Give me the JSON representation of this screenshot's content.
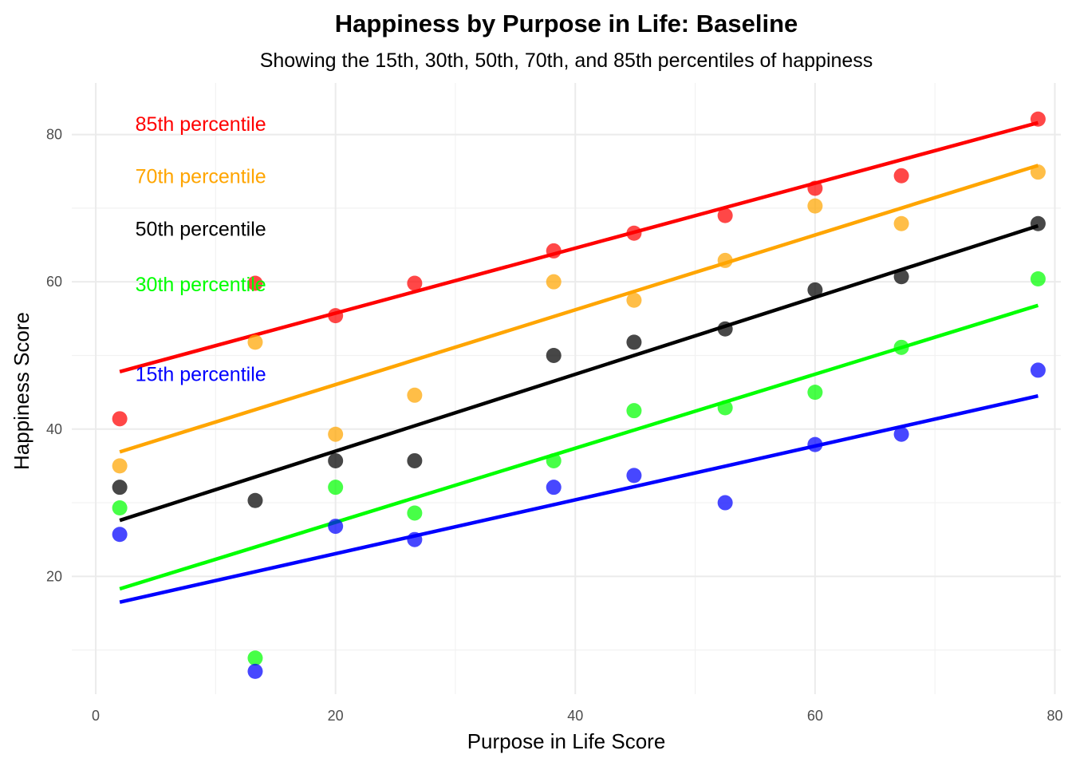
{
  "chart_data": {
    "type": "scatter",
    "title": "Happiness by Purpose in Life: Baseline",
    "subtitle": "Showing the 15th, 30th, 50th, 70th, and 85th percentiles of happiness",
    "xlabel": "Purpose in Life Score",
    "ylabel": "Happiness Score",
    "xlim": [
      -2,
      80.5
    ],
    "ylim": [
      4,
      87
    ],
    "x_ticks": [
      0,
      20,
      40,
      60,
      80
    ],
    "y_ticks": [
      20,
      40,
      60,
      80
    ],
    "x_tick_labels": [
      "0",
      "20",
      "40",
      "60",
      "80"
    ],
    "y_tick_labels": [
      "20",
      "40",
      "60",
      "80"
    ],
    "grid": true,
    "x": [
      2,
      13.3,
      20,
      26.6,
      38.2,
      44.9,
      52.5,
      60,
      67.2,
      78.6
    ],
    "series": [
      {
        "name": "85th percentile",
        "color": "#ff0000",
        "values": [
          41.4,
          59.8,
          55.4,
          59.8,
          64.2,
          66.6,
          69.0,
          72.7,
          74.4,
          82.1
        ],
        "line": {
          "x": [
            2,
            78.6
          ],
          "y": [
            47.8,
            81.6
          ]
        },
        "label_position": {
          "x": 3.3,
          "y": 81.5
        }
      },
      {
        "name": "70th percentile",
        "color": "#ffa500",
        "values": [
          35.0,
          51.8,
          39.3,
          44.6,
          60.0,
          57.5,
          62.9,
          70.3,
          67.9,
          74.9
        ],
        "line": {
          "x": [
            2,
            78.6
          ],
          "y": [
            36.9,
            75.8
          ]
        },
        "label_position": {
          "x": 3.3,
          "y": 74.4
        }
      },
      {
        "name": "50th percentile",
        "color": "#000000",
        "values": [
          32.1,
          30.3,
          35.7,
          35.7,
          50.0,
          51.8,
          53.6,
          58.9,
          60.7,
          67.9
        ],
        "line": {
          "x": [
            2,
            78.6
          ],
          "y": [
            27.6,
            67.6
          ]
        },
        "label_position": {
          "x": 3.3,
          "y": 67.2
        }
      },
      {
        "name": "30th percentile",
        "color": "#00ff00",
        "values": [
          29.3,
          8.9,
          32.1,
          28.6,
          35.7,
          42.5,
          42.9,
          45.0,
          51.1,
          60.4
        ],
        "line": {
          "x": [
            2,
            78.6
          ],
          "y": [
            18.3,
            56.8
          ]
        },
        "label_position": {
          "x": 3.3,
          "y": 59.7
        }
      },
      {
        "name": "15th percentile",
        "color": "#0000ff",
        "values": [
          25.7,
          7.1,
          26.8,
          25.0,
          32.1,
          33.7,
          30.0,
          37.9,
          39.3,
          48.0
        ],
        "line": {
          "x": [
            2,
            78.6
          ],
          "y": [
            16.5,
            44.5
          ]
        },
        "label_position": {
          "x": 3.3,
          "y": 47.5
        }
      }
    ]
  }
}
